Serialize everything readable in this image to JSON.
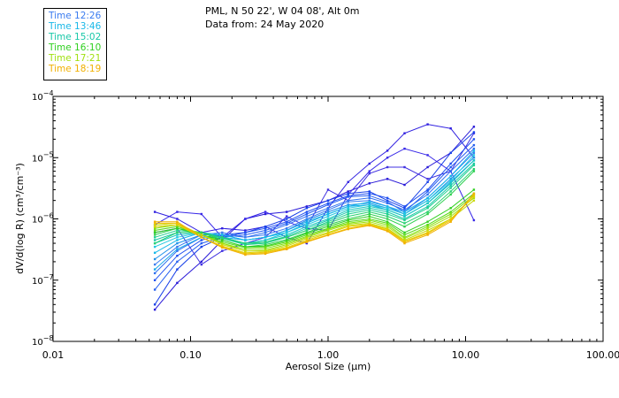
{
  "header": {
    "location": "PML, N 50 22', W 04 08', Alt 0m",
    "date": "Data from: 24 May 2020"
  },
  "chart_data": {
    "type": "line",
    "xscale": "log",
    "yscale": "log",
    "xlabel": "Aerosol Size (μm)",
    "ylabel": "dV/d(log R) (cm³/cm⁻³)",
    "xlim": [
      0.01,
      100
    ],
    "ylim": [
      1e-08,
      0.0001
    ],
    "x_ticks": [
      {
        "value": 0.01,
        "label": "0.01"
      },
      {
        "value": 0.1,
        "label": "0.10"
      },
      {
        "value": 1,
        "label": "1.00"
      },
      {
        "value": 10,
        "label": "10.00"
      },
      {
        "value": 100,
        "label": "100.00"
      }
    ],
    "y_ticks": [
      {
        "exp": -8,
        "base": "10",
        "sup": "−8"
      },
      {
        "exp": -7,
        "base": "10",
        "sup": "−7"
      },
      {
        "exp": -6,
        "base": "10",
        "sup": "−6"
      },
      {
        "exp": -5,
        "base": "10",
        "sup": "−5"
      },
      {
        "exp": -4,
        "base": "10",
        "sup": "−4"
      }
    ],
    "legend": [
      {
        "label": "Time 12:26",
        "color": "#3a7cf0"
      },
      {
        "label": "Time 13:46",
        "color": "#18b8e8"
      },
      {
        "label": "Time 15:02",
        "color": "#18c8a8"
      },
      {
        "label": "Time 16:10",
        "color": "#30d020"
      },
      {
        "label": "Time 17:21",
        "color": "#a0e010"
      },
      {
        "label": "Time 18:19",
        "color": "#f0b000"
      }
    ],
    "x": [
      0.055,
      0.08,
      0.12,
      0.17,
      0.25,
      0.35,
      0.5,
      0.7,
      1.0,
      1.4,
      2.0,
      2.7,
      3.6,
      5.3,
      7.8,
      11.5
    ],
    "series": [
      {
        "name": "s01",
        "color": "#2a1ad8",
        "values": [
          3.3e-08,
          9e-08,
          2e-07,
          4.5e-07,
          1e-06,
          1.2e-06,
          1.3e-06,
          1.6e-06,
          2e-06,
          2.8e-06,
          3.8e-06,
          4.5e-06,
          3.6e-06,
          7e-06,
          1.2e-05,
          3.2e-05
        ]
      },
      {
        "name": "s02",
        "color": "#3020e0",
        "values": [
          1.3e-06,
          1e-06,
          6e-07,
          7e-07,
          6.5e-07,
          7.5e-07,
          5e-07,
          4e-07,
          1.5e-06,
          4e-06,
          8e-06,
          1.3e-05,
          2.5e-05,
          3.5e-05,
          3e-05,
          1e-05
        ]
      },
      {
        "name": "s03",
        "color": "#3828e8",
        "values": [
          8e-07,
          1.3e-06,
          1.2e-06,
          5e-07,
          1e-06,
          1.3e-06,
          9e-07,
          7e-07,
          6.5e-07,
          2.5e-06,
          6e-06,
          1e-05,
          1.4e-05,
          1.1e-05,
          6e-06,
          9.5e-07
        ]
      },
      {
        "name": "s04",
        "color": "#4030e0",
        "values": [
          6e-07,
          7e-07,
          1.8e-07,
          3e-07,
          4e-07,
          5e-07,
          1.1e-06,
          7.5e-07,
          3e-06,
          2e-06,
          5.5e-06,
          7e-06,
          7e-06,
          4.5e-06,
          6e-06,
          2.5e-05
        ]
      },
      {
        "name": "s05",
        "color": "#1840e8",
        "values": [
          4e-08,
          1.5e-07,
          3.5e-07,
          5e-07,
          6e-07,
          7.5e-07,
          1e-06,
          1.5e-06,
          2e-06,
          2.6e-06,
          2.8e-06,
          2e-06,
          1.5e-06,
          4e-06,
          1.2e-05,
          2.6e-05
        ]
      },
      {
        "name": "s06",
        "color": "#2050f0",
        "values": [
          1e-07,
          2.5e-07,
          4.5e-07,
          5.5e-07,
          6e-07,
          7e-07,
          9e-07,
          1.3e-06,
          1.8e-06,
          2.4e-06,
          2.6e-06,
          2.2e-06,
          1.6e-06,
          3e-06,
          8e-06,
          2e-05
        ]
      },
      {
        "name": "s07",
        "color": "#2860f0",
        "values": [
          7e-08,
          2e-07,
          4e-07,
          5e-07,
          5.5e-07,
          6.5e-07,
          8.5e-07,
          1.2e-06,
          1.7e-06,
          2.3e-06,
          2.4e-06,
          1.9e-06,
          1.3e-06,
          2.8e-06,
          7e-06,
          1.6e-05
        ]
      },
      {
        "name": "s08",
        "color": "#3070f0",
        "values": [
          1.3e-07,
          3e-07,
          5e-07,
          5.5e-07,
          5e-07,
          6e-07,
          8e-07,
          1.1e-06,
          1.5e-06,
          2e-06,
          2.2e-06,
          1.8e-06,
          1.4e-06,
          2.5e-06,
          6e-06,
          1.4e-05
        ]
      },
      {
        "name": "s09",
        "color": "#3a7cf0",
        "values": [
          1.8e-07,
          3.5e-07,
          5.5e-07,
          6e-07,
          5e-07,
          5.5e-07,
          7e-07,
          1e-06,
          1.4e-06,
          1.9e-06,
          2e-06,
          1.6e-06,
          1.2e-06,
          2.2e-06,
          5e-06,
          1.2e-05
        ]
      },
      {
        "name": "s10",
        "color": "#2090e8",
        "values": [
          2.2e-07,
          4e-07,
          5.5e-07,
          5.5e-07,
          4.5e-07,
          5e-07,
          6.5e-07,
          9.5e-07,
          1.3e-06,
          1.7e-06,
          1.8e-06,
          1.5e-06,
          1.2e-06,
          2e-06,
          4.5e-06,
          1e-05
        ]
      },
      {
        "name": "s11",
        "color": "#18a8e8",
        "values": [
          1.5e-07,
          3.2e-07,
          5e-07,
          5e-07,
          4.5e-07,
          5e-07,
          6.5e-07,
          9e-07,
          1.2e-06,
          1.6e-06,
          1.7e-06,
          1.4e-06,
          1.1e-06,
          1.8e-06,
          4e-06,
          9e-06
        ]
      },
      {
        "name": "s12",
        "color": "#18b8e8",
        "values": [
          2.8e-07,
          4.5e-07,
          6e-07,
          5.5e-07,
          4.5e-07,
          5e-07,
          6e-07,
          8.5e-07,
          1.2e-06,
          1.6e-06,
          1.9e-06,
          1.6e-06,
          1.3e-06,
          2.2e-06,
          5e-06,
          1.3e-05
        ]
      },
      {
        "name": "s13",
        "color": "#20c8e0",
        "values": [
          3.5e-07,
          5e-07,
          6e-07,
          5e-07,
          4e-07,
          4.5e-07,
          6e-07,
          8e-07,
          1.1e-06,
          1.5e-06,
          1.7e-06,
          1.5e-06,
          1.2e-06,
          2e-06,
          4.2e-06,
          1.1e-05
        ]
      },
      {
        "name": "s14",
        "color": "#18c8c0",
        "values": [
          4e-07,
          5.5e-07,
          6e-07,
          5e-07,
          4e-07,
          4.5e-07,
          5.5e-07,
          7.5e-07,
          1e-06,
          1.4e-06,
          1.6e-06,
          1.4e-06,
          1.1e-06,
          1.8e-06,
          3.8e-06,
          9e-06
        ]
      },
      {
        "name": "s15",
        "color": "#18c8a8",
        "values": [
          4.5e-07,
          6e-07,
          6e-07,
          5e-07,
          3.8e-07,
          4.2e-07,
          5.2e-07,
          7e-07,
          9.5e-07,
          1.3e-06,
          1.5e-06,
          1.3e-06,
          1e-06,
          1.6e-06,
          3.5e-06,
          8e-06
        ]
      },
      {
        "name": "s16",
        "color": "#20d090",
        "values": [
          5e-07,
          6.5e-07,
          6e-07,
          4.8e-07,
          3.8e-07,
          4e-07,
          5e-07,
          6.5e-07,
          9e-07,
          1.2e-06,
          1.4e-06,
          1.2e-06,
          9.5e-07,
          1.5e-06,
          3.2e-06,
          7.5e-06
        ]
      },
      {
        "name": "s17",
        "color": "#28d070",
        "values": [
          4e-07,
          6e-07,
          6e-07,
          5e-07,
          4e-07,
          4.2e-07,
          5e-07,
          6.5e-07,
          8.5e-07,
          1.1e-06,
          1.3e-06,
          1.1e-06,
          8.5e-07,
          1.3e-06,
          2.8e-06,
          6.5e-06
        ]
      },
      {
        "name": "s18",
        "color": "#30d050",
        "values": [
          5.5e-07,
          7e-07,
          6e-07,
          4.5e-07,
          3.5e-07,
          3.8e-07,
          4.6e-07,
          6e-07,
          8e-07,
          1e-06,
          1.2e-06,
          1e-06,
          7.5e-07,
          1.2e-06,
          2.5e-06,
          6e-06
        ]
      },
      {
        "name": "s19",
        "color": "#30d020",
        "values": [
          6e-07,
          7e-07,
          5.5e-07,
          4.5e-07,
          3.5e-07,
          3.6e-07,
          4.4e-07,
          5.8e-07,
          7.5e-07,
          9.5e-07,
          1.1e-06,
          9e-07,
          6e-07,
          9e-07,
          1.5e-06,
          3e-06
        ]
      },
      {
        "name": "s20",
        "color": "#58d818",
        "values": [
          6.5e-07,
          7.5e-07,
          5.5e-07,
          4.2e-07,
          3.4e-07,
          3.5e-07,
          4.2e-07,
          5.5e-07,
          7e-07,
          9e-07,
          1e-06,
          8.5e-07,
          5.5e-07,
          8e-07,
          1.3e-06,
          2.6e-06
        ]
      },
      {
        "name": "s21",
        "color": "#80e010",
        "values": [
          7e-07,
          8e-07,
          5.5e-07,
          4e-07,
          3.2e-07,
          3.3e-07,
          4e-07,
          5.2e-07,
          6.8e-07,
          8.5e-07,
          9.5e-07,
          8e-07,
          5e-07,
          7.5e-07,
          1.2e-06,
          2.4e-06
        ]
      },
      {
        "name": "s22",
        "color": "#a0e010",
        "values": [
          7.5e-07,
          8e-07,
          5.5e-07,
          4e-07,
          3e-07,
          3.1e-07,
          3.8e-07,
          5e-07,
          6.5e-07,
          8.2e-07,
          9e-07,
          7.5e-07,
          4.8e-07,
          7e-07,
          1.1e-06,
          2.2e-06
        ]
      },
      {
        "name": "s23",
        "color": "#c8d808",
        "values": [
          8e-07,
          8.5e-07,
          5.5e-07,
          3.8e-07,
          3e-07,
          3e-07,
          3.6e-07,
          4.8e-07,
          6e-07,
          7.8e-07,
          8.5e-07,
          7e-07,
          4.5e-07,
          6.5e-07,
          1e-06,
          2e-06
        ]
      },
      {
        "name": "s24",
        "color": "#e0d000",
        "values": [
          7.5e-07,
          8e-07,
          5e-07,
          3.6e-07,
          2.8e-07,
          2.9e-07,
          3.4e-07,
          4.5e-07,
          5.8e-07,
          7.5e-07,
          8.2e-07,
          6.8e-07,
          4.3e-07,
          6e-07,
          1e-06,
          2.3e-06
        ]
      },
      {
        "name": "s25",
        "color": "#f0c000",
        "values": [
          8.5e-07,
          8.5e-07,
          5e-07,
          3.5e-07,
          2.7e-07,
          2.8e-07,
          3.3e-07,
          4.3e-07,
          5.5e-07,
          7e-07,
          8e-07,
          6.5e-07,
          4.2e-07,
          5.8e-07,
          9.5e-07,
          2.5e-06
        ]
      },
      {
        "name": "s26",
        "color": "#f0b000",
        "values": [
          9e-07,
          9e-07,
          5e-07,
          3.4e-07,
          2.6e-07,
          2.7e-07,
          3.2e-07,
          4.2e-07,
          5.4e-07,
          6.8e-07,
          7.8e-07,
          6.3e-07,
          4e-07,
          5.5e-07,
          9e-07,
          2.6e-06
        ]
      }
    ]
  }
}
